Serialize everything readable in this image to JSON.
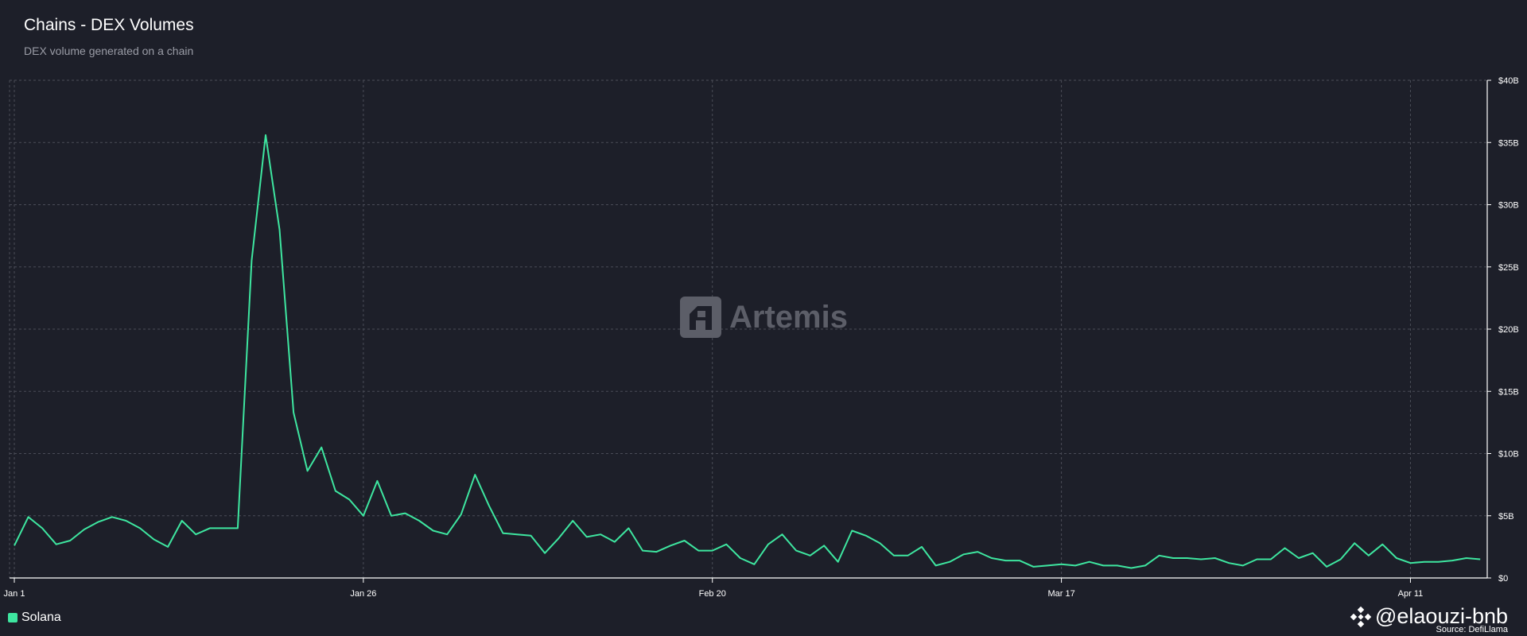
{
  "header": {
    "title": "Chains - DEX Volumes",
    "subtitle": "DEX volume generated on a chain"
  },
  "watermark": {
    "text": "Artemis",
    "icon": "artemis-logo-icon"
  },
  "footer": {
    "handle": "@elaouzi-bnb",
    "handle_icon": "binance-logo-icon",
    "source": "Source: DefiLlama"
  },
  "colors": {
    "background": "#1d1f29",
    "series": "#3ee6a0",
    "grid": "#4a4c57",
    "axis": "#ffffff"
  },
  "chart_data": {
    "type": "line",
    "title": "Chains - DEX Volumes",
    "subtitle": "DEX volume generated on a chain",
    "xlabel": "",
    "ylabel": "",
    "x_ticks": [
      "Jan 1",
      "Jan 26",
      "Feb 20",
      "Mar 17",
      "Apr 11"
    ],
    "y_ticks": [
      "$0",
      "$5B",
      "$10B",
      "$15B",
      "$20B",
      "$25B",
      "$30B",
      "$35B",
      "$40B"
    ],
    "ylim": [
      0,
      40
    ],
    "y_unit": "billion USD",
    "y_axis_side": "right",
    "grid": true,
    "legend": "bottom-left",
    "x_start": "2025-01-01",
    "x_step_days": 1,
    "series": [
      {
        "name": "Solana",
        "color": "#3ee6a0",
        "values": [
          2.6,
          4.9,
          4.0,
          2.7,
          3.0,
          3.9,
          4.5,
          4.9,
          4.6,
          4.0,
          3.1,
          2.5,
          4.6,
          3.5,
          4.0,
          4.0,
          4.0,
          25.5,
          35.6,
          28.0,
          13.3,
          8.6,
          10.5,
          7.0,
          6.3,
          5.0,
          7.8,
          5.0,
          5.2,
          4.6,
          3.8,
          3.5,
          5.1,
          8.3,
          5.8,
          3.6,
          3.5,
          3.4,
          2.0,
          3.2,
          4.6,
          3.3,
          3.5,
          2.9,
          4.0,
          2.2,
          2.1,
          2.6,
          3.0,
          2.2,
          2.2,
          2.7,
          1.6,
          1.1,
          2.7,
          3.5,
          2.2,
          1.8,
          2.6,
          1.3,
          3.8,
          3.4,
          2.8,
          1.8,
          1.8,
          2.5,
          1.0,
          1.3,
          1.9,
          2.1,
          1.6,
          1.4,
          1.4,
          0.9,
          1.0,
          1.1,
          1.0,
          1.3,
          1.0,
          1.0,
          0.8,
          1.0,
          1.8,
          1.6,
          1.6,
          1.5,
          1.6,
          1.2,
          1.0,
          1.5,
          1.5,
          2.4,
          1.6,
          2.0,
          0.9,
          1.5,
          2.8,
          1.8,
          2.7,
          1.6,
          1.2,
          1.3,
          1.3,
          1.4,
          1.6,
          1.5
        ]
      }
    ]
  }
}
